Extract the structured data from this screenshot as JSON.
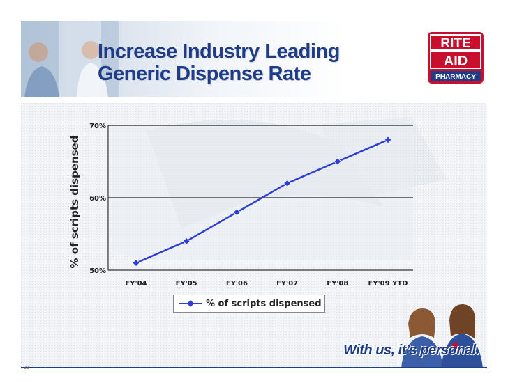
{
  "slide": {
    "title_line1": "Increase Industry Leading",
    "title_line2": "Generic Dispense Rate",
    "tagline": "With us, it’s personal.",
    "page_number": "30"
  },
  "logo": {
    "line1": "RITE",
    "line2": "AID",
    "line3": "PHARMACY"
  },
  "colors": {
    "title": "#1f3c88",
    "series": "#2a3fd9",
    "logo_red": "#c8102e",
    "logo_blue": "#1f3c88"
  },
  "chart_data": {
    "type": "line",
    "title": "",
    "xlabel": "",
    "ylabel": "% of scripts dispensed",
    "categories": [
      "FY'04",
      "FY'05",
      "FY'06",
      "FY'07",
      "FY'08",
      "FY'09 YTD"
    ],
    "series": [
      {
        "name": "% of scripts dispensed",
        "values": [
          51,
          54,
          58,
          62,
          65,
          68
        ]
      }
    ],
    "ylim": [
      50,
      70
    ],
    "yticks": [
      50,
      60,
      70
    ],
    "ytick_labels": [
      "50%",
      "60%",
      "70%"
    ],
    "grid": true,
    "legend": "bottom"
  }
}
